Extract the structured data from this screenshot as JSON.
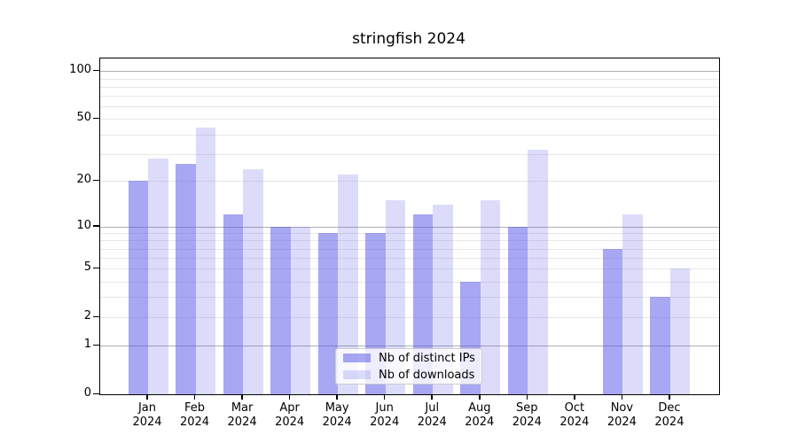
{
  "title": "stringfish 2024",
  "chart_data": {
    "type": "bar",
    "title": "stringfish 2024",
    "categories": [
      "Jan 2024",
      "Feb 2024",
      "Mar 2024",
      "Apr 2024",
      "May 2024",
      "Jun 2024",
      "Jul 2024",
      "Aug 2024",
      "Sep 2024",
      "Oct 2024",
      "Nov 2024",
      "Dec 2024"
    ],
    "x_tick_months": [
      "Jan",
      "Feb",
      "Mar",
      "Apr",
      "May",
      "Jun",
      "Jul",
      "Aug",
      "Sep",
      "Oct",
      "Nov",
      "Dec"
    ],
    "x_tick_year": "2024",
    "series": [
      {
        "name": "Nb of distinct IPs",
        "fill": "rgba(80,80,232,0.5)",
        "solid_hex": "#a7a7f3",
        "values": [
          20,
          26,
          12,
          10,
          9,
          9,
          12,
          4,
          10,
          0,
          7,
          3
        ]
      },
      {
        "name": "Nb of downloads",
        "fill": "rgba(80,80,232,0.2)",
        "solid_hex": "#dcdcfa",
        "values": [
          28,
          44,
          24,
          10,
          22,
          15,
          14,
          15,
          32,
          0,
          12,
          5
        ]
      }
    ],
    "yscale": "log1p",
    "ylim": [
      0,
      120
    ],
    "yticks": [
      0,
      1,
      2,
      5,
      10,
      20,
      50,
      100
    ],
    "major_gridlines": [
      1,
      10,
      100
    ],
    "minor_gridlines": [
      2,
      3,
      4,
      5,
      6,
      7,
      8,
      9,
      20,
      30,
      40,
      50,
      60,
      70,
      80,
      90
    ],
    "grid": "horizontal",
    "legend_position": "lower center",
    "colors": {
      "grid_major": "#b0b0b0",
      "grid_minor": "#e8e8e8",
      "spine": "#000000",
      "legend_border": "#cccccc"
    }
  }
}
